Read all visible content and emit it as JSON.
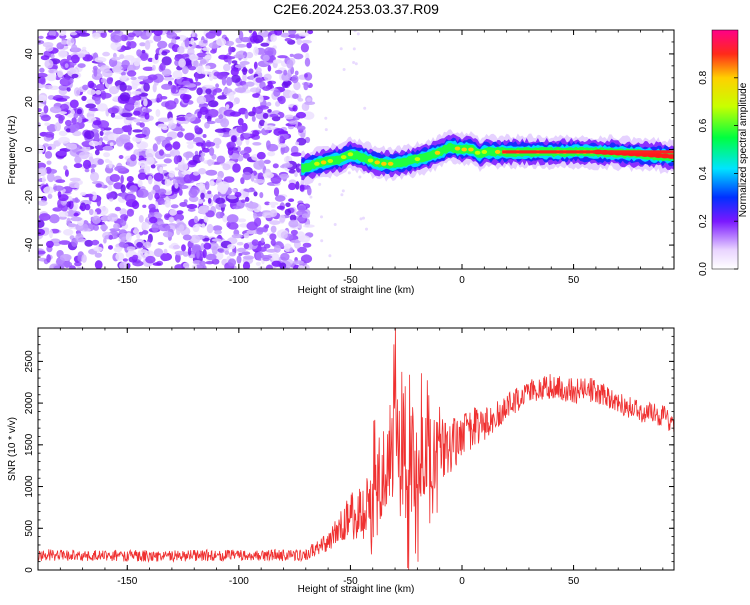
{
  "title": "C2E6.2024.253.03.37.R09",
  "colors": {
    "snr_line": "#ef3030",
    "frame": "#000000",
    "scatter_base": "#7a18ff"
  },
  "chart_data": [
    {
      "type": "heatmap",
      "title": "C2E6.2024.253.03.37.R09",
      "xlabel": "Height of straight line (km)",
      "ylabel": "Frequency (Hz)",
      "xlim": [
        -190,
        95
      ],
      "ylim": [
        -50,
        50
      ],
      "x_ticks": [
        -150,
        -100,
        -50,
        0,
        50
      ],
      "y_ticks": [
        -40,
        -20,
        0,
        20,
        40
      ],
      "colorbar": {
        "label": "Normalized spectral amplitude",
        "range": [
          0,
          1
        ],
        "ticks": [
          0.0,
          0.2,
          0.4,
          0.6,
          0.8
        ]
      },
      "noise_region_x": [
        -190,
        -68
      ],
      "ridge": {
        "x": [
          -72,
          -65,
          -55,
          -50,
          -45,
          -40,
          -35,
          -30,
          -25,
          -20,
          -15,
          -10,
          -5,
          0,
          5,
          8,
          10,
          20,
          40,
          60,
          80,
          95
        ],
        "y": [
          -8,
          -6,
          -4,
          -2,
          -3,
          -5,
          -6,
          -6,
          -5,
          -4,
          -3,
          -1,
          1,
          0,
          0,
          -2,
          -1,
          -1,
          -1,
          -1,
          -2,
          -3
        ],
        "peak_x": [
          60,
          95
        ]
      }
    },
    {
      "type": "line",
      "xlabel": "Height of straight line (km)",
      "ylabel": "SNR (10 * v/v)",
      "xlim": [
        -190,
        95
      ],
      "ylim": [
        0,
        2900
      ],
      "x_ticks": [
        -150,
        -100,
        -50,
        0,
        50
      ],
      "y_ticks": [
        0,
        500,
        1000,
        1500,
        2000,
        2500
      ],
      "envelope": {
        "x": [
          -190,
          -150,
          -100,
          -70,
          -60,
          -55,
          -50,
          -45,
          -40,
          -35,
          -30,
          -27,
          -25,
          -20,
          -15,
          -10,
          -5,
          0,
          5,
          10,
          20,
          30,
          40,
          50,
          60,
          70,
          80,
          90,
          95
        ],
        "y": [
          180,
          170,
          175,
          180,
          350,
          500,
          650,
          700,
          800,
          1200,
          1450,
          1500,
          1350,
          1250,
          1400,
          1400,
          1500,
          1600,
          1700,
          1750,
          1950,
          2150,
          2200,
          2150,
          2150,
          2000,
          1900,
          1850,
          1750
        ],
        "amplitude": [
          70,
          70,
          70,
          70,
          120,
          200,
          300,
          350,
          500,
          650,
          800,
          900,
          800,
          650,
          450,
          400,
          350,
          250,
          250,
          200,
          150,
          150,
          150,
          150,
          150,
          130,
          130,
          130,
          130
        ]
      }
    }
  ]
}
